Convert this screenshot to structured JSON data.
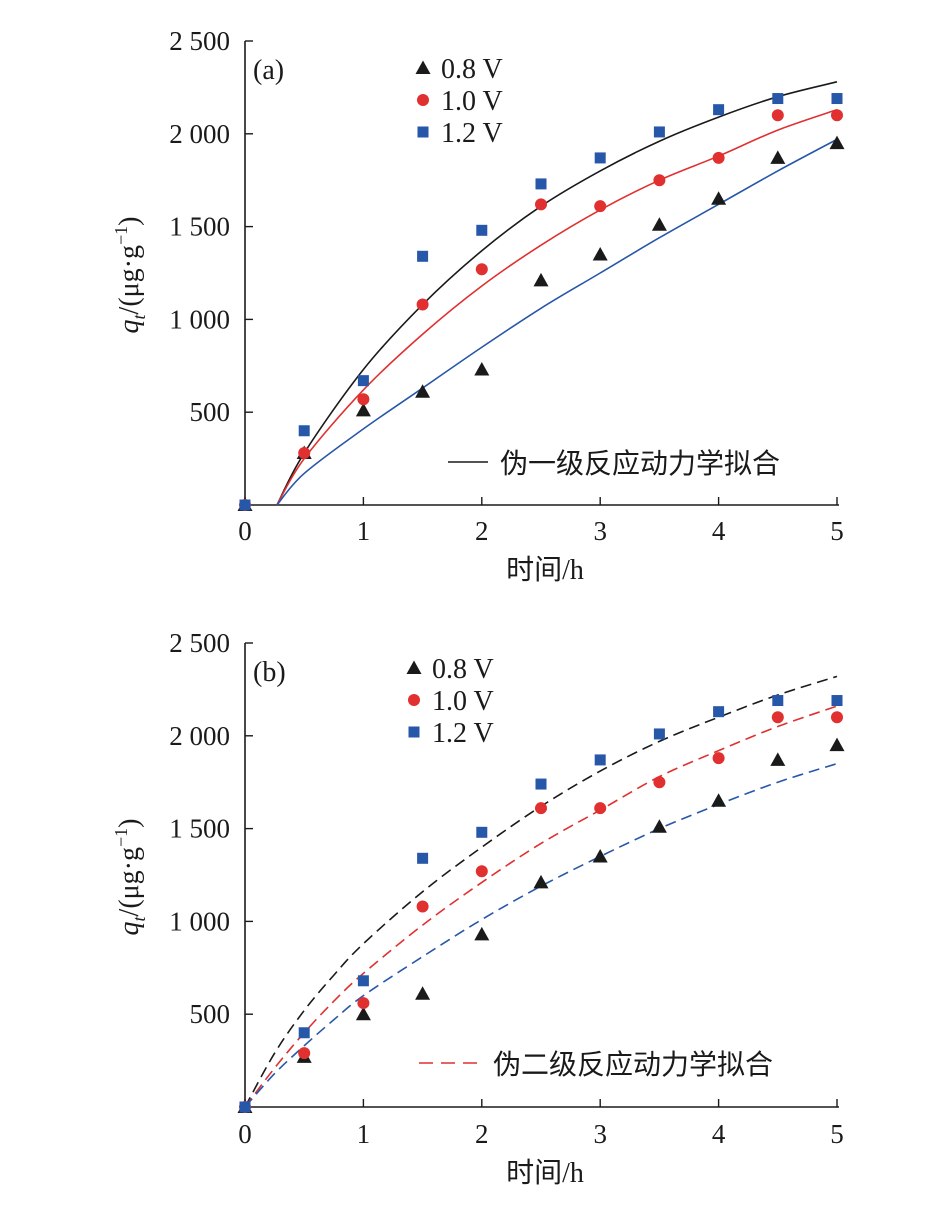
{
  "chart_data": [
    {
      "type": "scatter",
      "panel_label": "(a)",
      "xlabel": "时间/h",
      "ylabel": "q_t/(μg·g⁻¹)",
      "xlim": [
        0,
        5
      ],
      "ylim": [
        0,
        2500
      ],
      "xticks": [
        "0",
        "1",
        "2",
        "3",
        "4",
        "5"
      ],
      "yticks": [
        "500",
        "1 000",
        "1 500",
        "2 000",
        "2 500"
      ],
      "x": [
        0,
        0.5,
        1,
        1.5,
        2,
        2.5,
        3,
        3.5,
        4,
        4.5,
        5
      ],
      "series": [
        {
          "name": "0.8 V",
          "marker": "triangle",
          "color": "#1a1a1a",
          "values": [
            0,
            280,
            510,
            610,
            730,
            1210,
            1350,
            1510,
            1650,
            1870,
            1950
          ]
        },
        {
          "name": "1.0 V",
          "marker": "circle",
          "color": "#e03030",
          "values": [
            0,
            280,
            570,
            1080,
            1270,
            1620,
            1610,
            1750,
            1870,
            2100,
            2100
          ]
        },
        {
          "name": "1.2 V",
          "marker": "square",
          "color": "#2757a8",
          "values": [
            0,
            400,
            670,
            1340,
            1480,
            1730,
            1870,
            2010,
            2130,
            2190,
            2190
          ]
        }
      ],
      "fit_curves": [
        {
          "color": "#1a1a1a",
          "style": "solid",
          "points": [
            [
              0.27,
              0
            ],
            [
              0.5,
              280
            ],
            [
              1,
              730
            ],
            [
              1.5,
              1080
            ],
            [
              2,
              1370
            ],
            [
              2.5,
              1610
            ],
            [
              3,
              1800
            ],
            [
              3.5,
              1960
            ],
            [
              4,
              2090
            ],
            [
              4.5,
              2200
            ],
            [
              5,
              2280
            ]
          ]
        },
        {
          "color": "#e03030",
          "style": "solid",
          "points": [
            [
              0.27,
              0
            ],
            [
              0.5,
              250
            ],
            [
              1,
              620
            ],
            [
              1.5,
              920
            ],
            [
              2,
              1180
            ],
            [
              2.5,
              1400
            ],
            [
              3,
              1590
            ],
            [
              3.5,
              1750
            ],
            [
              4,
              1880
            ],
            [
              4.5,
              2020
            ],
            [
              5,
              2130
            ]
          ]
        },
        {
          "color": "#2757a8",
          "style": "solid",
          "points": [
            [
              0.27,
              0
            ],
            [
              0.5,
              170
            ],
            [
              1,
              410
            ],
            [
              1.5,
              630
            ],
            [
              2,
              850
            ],
            [
              2.5,
              1060
            ],
            [
              3,
              1250
            ],
            [
              3.5,
              1440
            ],
            [
              4,
              1620
            ],
            [
              4.5,
              1800
            ],
            [
              5,
              1970
            ]
          ]
        }
      ],
      "fit_legend": "伪一级反应动力学拟合",
      "fit_legend_color": "#1a1a1a",
      "fit_legend_style": "solid"
    },
    {
      "type": "scatter",
      "panel_label": "(b)",
      "xlabel": "时间/h",
      "ylabel": "q_t/(μg·g⁻¹)",
      "xlim": [
        0,
        5
      ],
      "ylim": [
        0,
        2500
      ],
      "xticks": [
        "0",
        "1",
        "2",
        "3",
        "4",
        "5"
      ],
      "yticks": [
        "500",
        "1 000",
        "1 500",
        "2 000",
        "2 500"
      ],
      "x": [
        0,
        0.5,
        1,
        1.5,
        2,
        2.5,
        3,
        3.5,
        4,
        4.5,
        5
      ],
      "series": [
        {
          "name": "0.8 V",
          "marker": "triangle",
          "color": "#1a1a1a",
          "values": [
            0,
            270,
            500,
            610,
            930,
            1210,
            1350,
            1510,
            1650,
            1870,
            1950
          ]
        },
        {
          "name": "1.0 V",
          "marker": "circle",
          "color": "#e03030",
          "values": [
            0,
            290,
            560,
            1080,
            1270,
            1610,
            1610,
            1750,
            1880,
            2100,
            2100
          ]
        },
        {
          "name": "1.2 V",
          "marker": "square",
          "color": "#2757a8",
          "values": [
            0,
            400,
            680,
            1340,
            1480,
            1740,
            1870,
            2010,
            2130,
            2190,
            2190
          ]
        }
      ],
      "fit_curves": [
        {
          "color": "#1a1a1a",
          "style": "dashed",
          "points": [
            [
              0,
              0
            ],
            [
              0.25,
              290
            ],
            [
              0.5,
              520
            ],
            [
              0.75,
              710
            ],
            [
              1,
              880
            ],
            [
              1.5,
              1160
            ],
            [
              2,
              1400
            ],
            [
              2.5,
              1620
            ],
            [
              3,
              1810
            ],
            [
              3.5,
              1970
            ],
            [
              4,
              2100
            ],
            [
              4.5,
              2220
            ],
            [
              5,
              2320
            ]
          ]
        },
        {
          "color": "#e03030",
          "style": "dashed",
          "points": [
            [
              0,
              0
            ],
            [
              0.25,
              210
            ],
            [
              0.5,
              400
            ],
            [
              0.75,
              570
            ],
            [
              1,
              720
            ],
            [
              1.5,
              980
            ],
            [
              2,
              1210
            ],
            [
              2.5,
              1420
            ],
            [
              3,
              1600
            ],
            [
              3.5,
              1780
            ],
            [
              4,
              1920
            ],
            [
              4.5,
              2050
            ],
            [
              5,
              2160
            ]
          ]
        },
        {
          "color": "#2757a8",
          "style": "dashed",
          "points": [
            [
              0,
              0
            ],
            [
              0.25,
              180
            ],
            [
              0.5,
              330
            ],
            [
              0.75,
              470
            ],
            [
              1,
              600
            ],
            [
              1.5,
              810
            ],
            [
              2,
              1010
            ],
            [
              2.5,
              1190
            ],
            [
              3,
              1350
            ],
            [
              3.5,
              1500
            ],
            [
              4,
              1630
            ],
            [
              4.5,
              1750
            ],
            [
              5,
              1850
            ]
          ]
        }
      ],
      "fit_legend": "伪二级反应动力学拟合",
      "fit_legend_color": "#e03030",
      "fit_legend_style": "dashed"
    }
  ]
}
